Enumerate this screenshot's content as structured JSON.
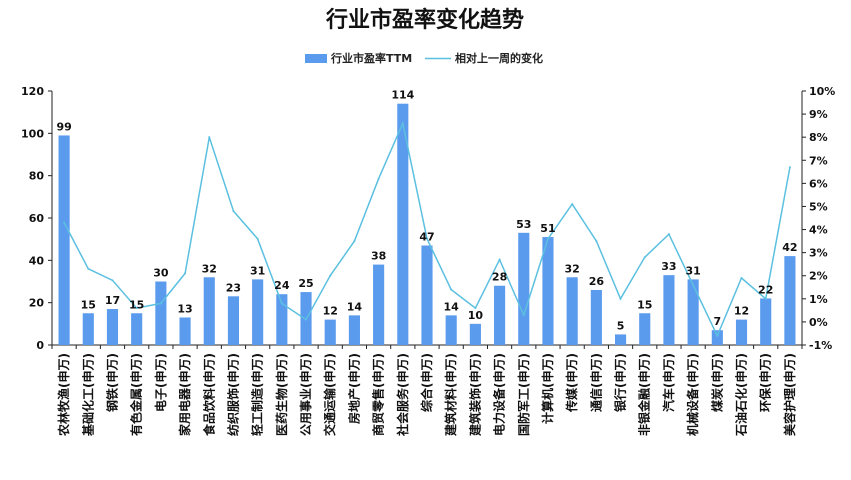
{
  "chart_data": {
    "type": "bar",
    "title": "行业市盈率变化趋势",
    "categories": [
      "农林牧渔(申万)",
      "基础化工(申万)",
      "钢铁(申万)",
      "有色金属(申万)",
      "电子(申万)",
      "家用电器(申万)",
      "食品饮料(申万)",
      "纺织服饰(申万)",
      "轻工制造(申万)",
      "医药生物(申万)",
      "公用事业(申万)",
      "交通运输(申万)",
      "房地产(申万)",
      "商贸零售(申万)",
      "社会服务(申万)",
      "综合(申万)",
      "建筑材料(申万)",
      "建筑装饰(申万)",
      "电力设备(申万)",
      "国防军工(申万)",
      "计算机(申万)",
      "传媒(申万)",
      "通信(申万)",
      "银行(申万)",
      "非银金融(申万)",
      "汽车(申万)",
      "机械设备(申万)",
      "煤炭(申万)",
      "石油石化(申万)",
      "环保(申万)",
      "美容护理(申万)"
    ],
    "series": [
      {
        "name": "行业市盈率TTM",
        "type": "bar",
        "axis": "left",
        "color": "#5b9bee",
        "values": [
          99,
          15,
          17,
          15,
          30,
          13,
          32,
          23,
          31,
          24,
          25,
          12,
          14,
          38,
          114,
          47,
          14,
          10,
          28,
          53,
          51,
          32,
          26,
          5,
          15,
          33,
          31,
          7,
          12,
          22,
          42
        ]
      },
      {
        "name": "相对上一周的变化",
        "type": "line",
        "axis": "right",
        "color": "#5bc0e0",
        "values": [
          4.3,
          2.3,
          1.8,
          0.6,
          0.8,
          2.1,
          8.0,
          4.8,
          3.6,
          0.8,
          0.1,
          2.0,
          3.5,
          6.2,
          8.6,
          3.6,
          1.4,
          0.6,
          2.7,
          0.3,
          3.6,
          5.1,
          3.5,
          1.0,
          2.8,
          3.8,
          1.6,
          -0.6,
          1.9,
          1.0,
          6.7
        ]
      }
    ],
    "y_left": {
      "min": 0,
      "max": 120,
      "step": 20,
      "ticks": [
        "0",
        "20",
        "40",
        "60",
        "80",
        "100",
        "120"
      ]
    },
    "y_right": {
      "min": -1,
      "max": 10,
      "step": 1,
      "ticks": [
        "-1%",
        "0%",
        "1%",
        "2%",
        "3%",
        "4%",
        "5%",
        "6%",
        "7%",
        "8%",
        "9%",
        "10%"
      ]
    },
    "grid": false,
    "legend_position": "top-center"
  }
}
